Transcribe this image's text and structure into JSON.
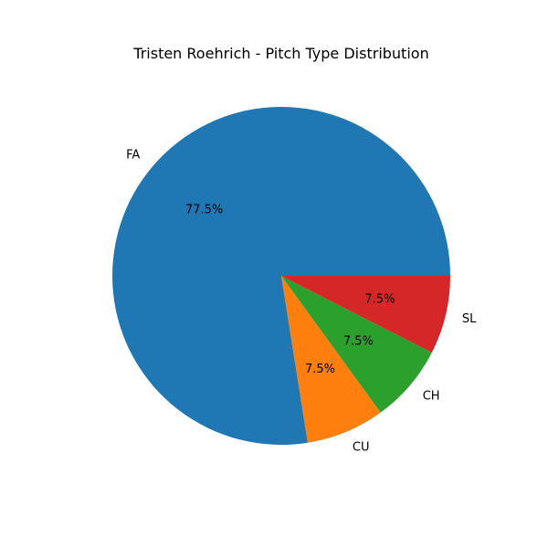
{
  "chart_data": {
    "type": "pie",
    "title": "Tristen Roehrich - Pitch Type Distribution",
    "labels": [
      "FA",
      "CU",
      "CH",
      "SL"
    ],
    "values": [
      77.5,
      7.5,
      7.5,
      7.5
    ],
    "percent_labels": [
      "77.5%",
      "7.5%",
      "7.5%",
      "7.5%"
    ],
    "colors": [
      "#1f77b4",
      "#ff7f0e",
      "#2ca02c",
      "#d62728"
    ],
    "start_angle_deg": 0,
    "direction": "counterclockwise",
    "legend": "none"
  }
}
